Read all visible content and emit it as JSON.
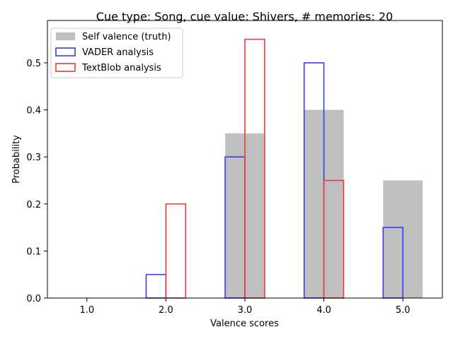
{
  "chart_data": {
    "type": "bar",
    "title": "Cue type: Song, cue value: Shivers, # memories: 20",
    "xlabel": "Valence scores",
    "ylabel": "Probability",
    "categories": [
      "1.0",
      "2.0",
      "3.0",
      "4.0",
      "5.0"
    ],
    "x": [
      1.0,
      2.0,
      3.0,
      4.0,
      5.0
    ],
    "xlim": [
      0.5,
      5.5
    ],
    "ylim": [
      0,
      0.59
    ],
    "yticks": [
      0.0,
      0.1,
      0.2,
      0.3,
      0.4,
      0.5
    ],
    "ytick_labels": [
      "0.0",
      "0.1",
      "0.2",
      "0.3",
      "0.4",
      "0.5"
    ],
    "grid": false,
    "legend_position": "top-left",
    "series": [
      {
        "name": "Self valence (truth)",
        "style": "filled",
        "color": "#bfbfbf",
        "values": [
          0.0,
          0.0,
          0.35,
          0.4,
          0.25
        ]
      },
      {
        "name": "VADER analysis",
        "style": "outline",
        "color": "#3b3bef",
        "values": [
          0.0,
          0.05,
          0.3,
          0.5,
          0.15
        ]
      },
      {
        "name": "TextBlob analysis",
        "style": "outline",
        "color": "#ef3b3b",
        "values": [
          0.0,
          0.2,
          0.55,
          0.25,
          0.0
        ]
      }
    ]
  }
}
